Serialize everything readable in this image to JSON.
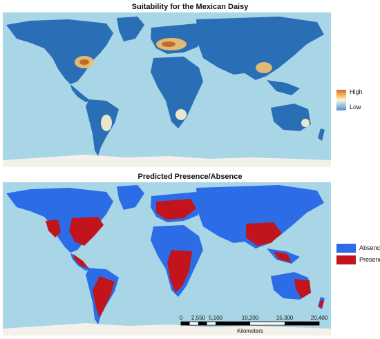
{
  "maps": {
    "suitability": {
      "title": "Suitability for the Mexican Daisy",
      "legend_high": "High",
      "legend_low": "Low",
      "colors": {
        "high": "#d2691e",
        "low": "#5a8fd4",
        "land": "#2a6fb5",
        "ocean": "#a9d6e6"
      }
    },
    "presence": {
      "title": "Predicted Presence/Absence",
      "legend": {
        "absence": "Absence",
        "presence": "Presence"
      },
      "colors": {
        "absence": "#2c6ce6",
        "presence": "#c1141c",
        "ocean": "#a9d6e6"
      }
    }
  },
  "scale_bar": {
    "ticks": [
      "0",
      "2,550",
      "5,100",
      "10,200",
      "15,300",
      "20,400"
    ],
    "unit": "Kilometers"
  }
}
